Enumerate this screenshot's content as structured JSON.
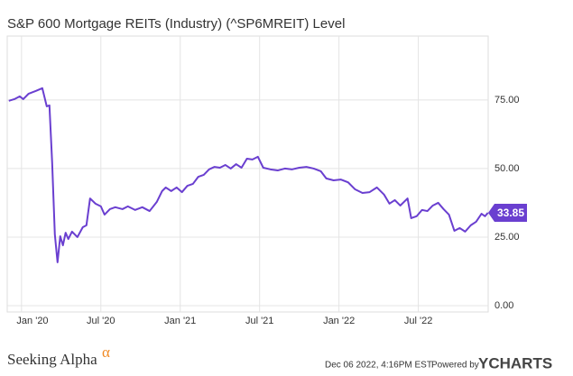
{
  "chart_data": {
    "type": "line",
    "title": "S&P 600 Mortgage REITs (Industry) (^SP6MREIT) Level",
    "x": [
      2019.92,
      2019.955,
      2019.989,
      2020.011,
      2020.045,
      2020.091,
      2020.131,
      2020.159,
      2020.176,
      2020.193,
      2020.21,
      2020.227,
      2020.244,
      2020.261,
      2020.278,
      2020.295,
      2020.318,
      2020.352,
      2020.386,
      2020.409,
      2020.432,
      2020.466,
      2020.5,
      2020.523,
      2020.557,
      2020.591,
      2020.636,
      2020.67,
      2020.716,
      2020.761,
      2020.807,
      2020.852,
      2020.886,
      2020.909,
      2020.943,
      2020.977,
      2021.011,
      2021.045,
      2021.08,
      2021.114,
      2021.148,
      2021.182,
      2021.216,
      2021.25,
      2021.284,
      2021.318,
      2021.352,
      2021.386,
      2021.42,
      2021.455,
      2021.489,
      2021.523,
      2021.568,
      2021.614,
      2021.659,
      2021.705,
      2021.75,
      2021.795,
      2021.841,
      2021.886,
      2021.92,
      2021.966,
      2022.011,
      2022.057,
      2022.102,
      2022.148,
      2022.193,
      2022.239,
      2022.284,
      2022.318,
      2022.352,
      2022.386,
      2022.432,
      2022.455,
      2022.489,
      2022.523,
      2022.557,
      2022.591,
      2022.625,
      2022.659,
      2022.693,
      2022.727,
      2022.761,
      2022.795,
      2022.83,
      2022.864,
      2022.898,
      2022.92,
      2022.938
    ],
    "values": [
      74.7,
      75.3,
      76.3,
      75.3,
      77.3,
      78.3,
      79.3,
      72.7,
      73,
      52.3,
      26,
      15.8,
      25.3,
      22,
      26.6,
      24.3,
      27,
      25,
      28.6,
      29.3,
      39.1,
      37.2,
      36.2,
      33.2,
      35.2,
      35.9,
      35.2,
      36.2,
      34.9,
      35.9,
      34.5,
      37.8,
      41.8,
      43.1,
      41.8,
      43.1,
      41.4,
      43.7,
      44.4,
      47,
      47.7,
      49.7,
      50.6,
      50.3,
      51.3,
      50,
      51.6,
      50.3,
      53.6,
      53.3,
      54.3,
      50.3,
      49.7,
      49.3,
      50,
      49.7,
      50.3,
      50.6,
      50,
      49,
      46.4,
      45.7,
      46,
      45,
      42.4,
      41.1,
      41.4,
      43.1,
      40.5,
      37.2,
      38.5,
      36.5,
      39.1,
      31.9,
      32.6,
      34.9,
      34.5,
      36.5,
      37.5,
      35.2,
      33.2,
      27.3,
      28.3,
      27,
      29.3,
      30.6,
      33.5,
      32.6,
      33.85
    ],
    "color": "#6a3fd0",
    "xlim": [
      2019.91,
      2022.94
    ],
    "xticks": [
      {
        "value": 2020,
        "label": "Jan '20"
      },
      {
        "value": 2020.5,
        "label": "Jul '20"
      },
      {
        "value": 2021,
        "label": "Jan '21"
      },
      {
        "value": 2021.5,
        "label": "Jul '21"
      },
      {
        "value": 2022,
        "label": "Jan '22"
      },
      {
        "value": 2022.5,
        "label": "Jul '22"
      }
    ],
    "ylim": [
      -2.3,
      98.3
    ],
    "yticks": [
      {
        "value": 0,
        "label": "0.00"
      },
      {
        "value": 25,
        "label": "25.00"
      },
      {
        "value": 50,
        "label": "50.00"
      },
      {
        "value": 75,
        "label": "75.00"
      }
    ],
    "grid": true
  },
  "footer": {
    "source": "Seeking Alpha",
    "source_mark": "α",
    "timestamp": "Dec 06 2022, 4:16PM EST.",
    "powered": "Powered by",
    "brand": "YCHARTS"
  }
}
